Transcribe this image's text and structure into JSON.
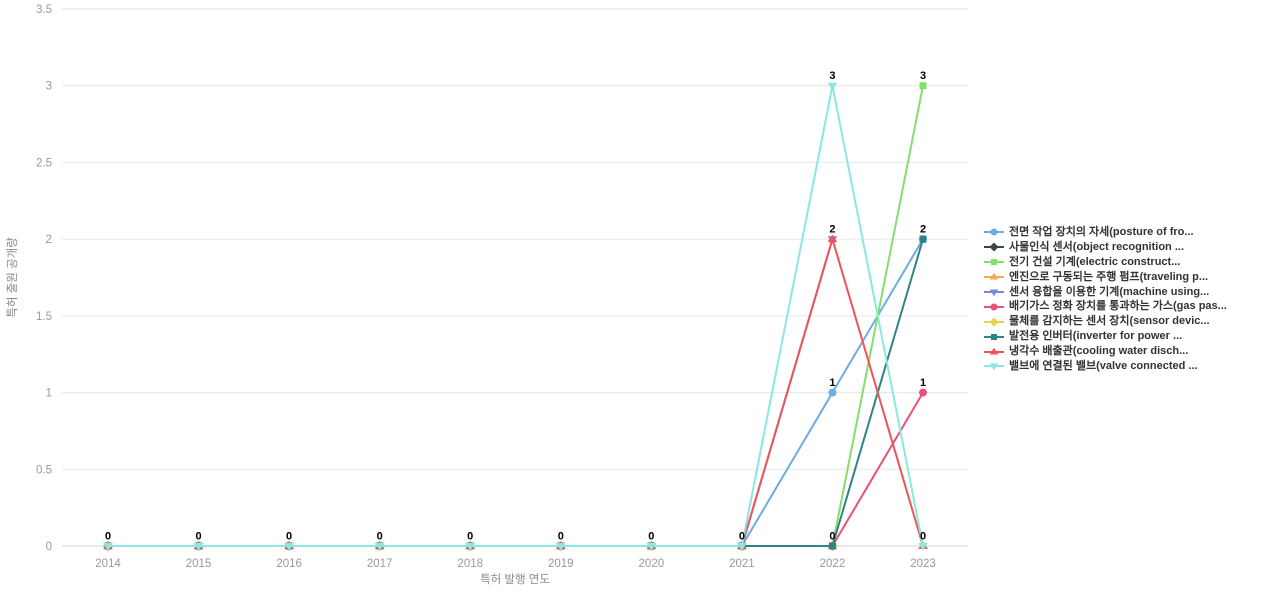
{
  "chart_data": {
    "type": "line",
    "title": "",
    "xlabel": "특허 발행 연도",
    "ylabel": "특허 출원 공개량",
    "categories": [
      "2014",
      "2015",
      "2016",
      "2017",
      "2018",
      "2019",
      "2020",
      "2021",
      "2022",
      "2023"
    ],
    "yticks": [
      0,
      0.5,
      1,
      1.5,
      2,
      2.5,
      3,
      3.5
    ],
    "ylim": [
      0,
      3.5
    ],
    "grid": "horizontal-only",
    "legend_position": "right",
    "colors": {
      "axis_line": "#CCD6EB",
      "grid_line": "#E6E6E6",
      "tick_label": "#999999",
      "axis_title": "#8A8A8A",
      "data_label": "#000000",
      "legend_text": "#333333"
    },
    "series": [
      {
        "label": "전면 작업 장치의 자세(posture of fro...",
        "marker": "circle",
        "color": "#6CACE4",
        "values": [
          0,
          0,
          0,
          0,
          0,
          0,
          0,
          0,
          1,
          2
        ]
      },
      {
        "label": "사물인식 센서(object recognition ...",
        "marker": "diamond",
        "color": "#3B444B",
        "values": [
          0,
          0,
          0,
          0,
          0,
          0,
          0,
          0,
          0,
          null
        ]
      },
      {
        "label": "전기 건설 기계(electric construct...",
        "marker": "square",
        "color": "#82DF6A",
        "values": [
          0,
          0,
          0,
          0,
          0,
          0,
          0,
          0,
          0,
          3
        ]
      },
      {
        "label": "엔진으로 구동되는 주행 펌프(traveling p...",
        "marker": "triangle-up",
        "color": "#F4A85A",
        "values": [
          0,
          0,
          0,
          0,
          0,
          0,
          0,
          0,
          0,
          null
        ]
      },
      {
        "label": "센서 융합을 이용한 기계(machine using...",
        "marker": "triangle-down",
        "color": "#7A88D8",
        "values": [
          0,
          0,
          0,
          0,
          0,
          0,
          0,
          0,
          2,
          null
        ]
      },
      {
        "label": "배기가스 정화 장치를 통과하는 가스(gas pas...",
        "marker": "circle",
        "color": "#EA5178",
        "values": [
          0,
          0,
          0,
          0,
          0,
          0,
          0,
          0,
          0,
          1
        ]
      },
      {
        "label": "물체를 감지하는 센서 장치(sensor devic...",
        "marker": "diamond",
        "color": "#E5D24E",
        "values": [
          0,
          0,
          0,
          0,
          0,
          0,
          0,
          0,
          0,
          null
        ]
      },
      {
        "label": "발전용 인버터(inverter for power ...",
        "marker": "square",
        "color": "#2E8388",
        "values": [
          0,
          0,
          0,
          0,
          0,
          0,
          0,
          0,
          0,
          2
        ]
      },
      {
        "label": "냉각수 배출관(cooling water disch...",
        "marker": "triangle-up",
        "color": "#EE5456",
        "values": [
          0,
          0,
          0,
          0,
          0,
          0,
          0,
          0,
          2,
          0
        ]
      },
      {
        "label": "밸브에 연결된 밸브(valve connected ...",
        "marker": "triangle-down",
        "color": "#8AE8DF",
        "values": [
          0,
          0,
          0,
          0,
          0,
          0,
          0,
          0,
          3,
          0
        ]
      }
    ]
  }
}
